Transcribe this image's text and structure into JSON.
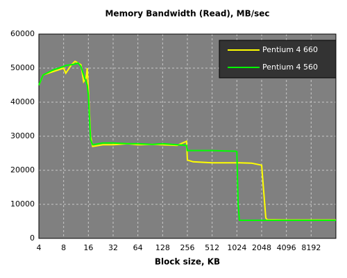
{
  "chart_data": {
    "type": "line",
    "title": "Memory Bandwidth (Read), MB/sec",
    "x_label": "Block size, KB",
    "x": [
      4,
      4.5,
      6,
      8,
      8.5,
      10,
      11,
      12,
      13,
      14,
      15,
      15.5,
      16,
      17,
      18,
      24,
      32,
      48,
      64,
      96,
      128,
      192,
      250,
      256,
      300,
      512,
      1000,
      1024,
      1060,
      1100,
      1536,
      2048,
      2150,
      2300,
      2400,
      4096,
      8192,
      16384
    ],
    "series": [
      {
        "name": "Pentium 4 660",
        "color": "#ffff00",
        "values": [
          45000,
          48000,
          49000,
          50000,
          48500,
          51000,
          52000,
          51500,
          51000,
          46000,
          47000,
          50000,
          44000,
          30000,
          27000,
          27500,
          27500,
          27800,
          27500,
          27600,
          27500,
          27300,
          28500,
          23000,
          22500,
          22200,
          22200,
          22200,
          22200,
          22200,
          22100,
          21500,
          15000,
          6000,
          5500,
          5400,
          5400,
          5400
        ]
      },
      {
        "name": "Pentium 4 560",
        "color": "#00ff00",
        "values": [
          45000,
          48000,
          49500,
          50500,
          50800,
          51000,
          51200,
          51500,
          50500,
          48000,
          46000,
          45000,
          42000,
          29000,
          27500,
          28000,
          28000,
          27800,
          27800,
          27600,
          27800,
          27500,
          27300,
          25800,
          25800,
          25800,
          25600,
          25500,
          10000,
          5300,
          5300,
          5300,
          5300,
          5300,
          5300,
          5300,
          5300,
          5300
        ]
      }
    ],
    "xscale": "log2",
    "xlim": [
      4,
      16384
    ],
    "xticks": [
      4,
      8,
      16,
      32,
      64,
      128,
      256,
      512,
      1024,
      2048,
      4096,
      8192
    ],
    "ylim": [
      0,
      60000
    ],
    "yticks": [
      0,
      10000,
      20000,
      30000,
      40000,
      50000,
      60000
    ],
    "grid": true,
    "legend": "upper right"
  }
}
